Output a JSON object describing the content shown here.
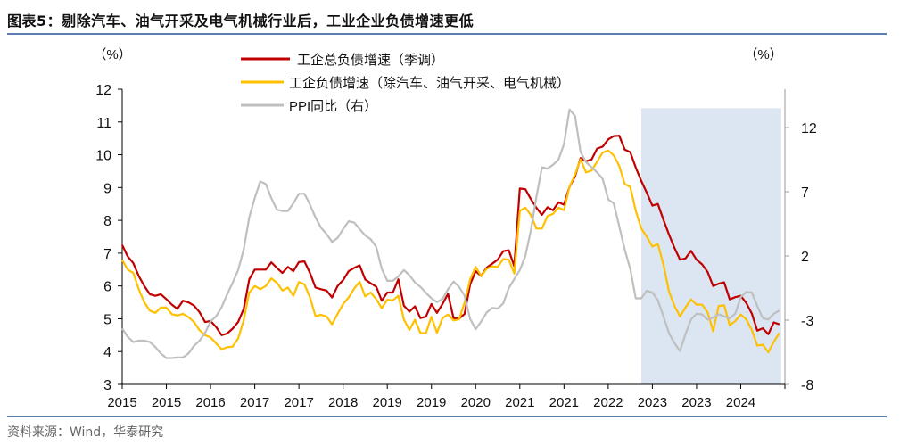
{
  "title": "图表5：剔除汽车、油气开采及电气机械行业后，工业企业负债增速更低",
  "source": "资料来源：Wind，华泰研究",
  "colors": {
    "rule": "#5b7db4",
    "highlight": "#dce6f2"
  },
  "chart_data": {
    "type": "line",
    "left_unit": "（%）",
    "right_unit": "（%）",
    "left_ylim": [
      3,
      12
    ],
    "left_ticks": [
      "3",
      "4",
      "5",
      "6",
      "7",
      "8",
      "9",
      "10",
      "11",
      "12"
    ],
    "right_ylim": [
      -8,
      15
    ],
    "right_ticks": [
      "-8",
      "-3",
      "2",
      "7",
      "12"
    ],
    "x_tick_labels": [
      "2015",
      "2015",
      "2016",
      "2017",
      "2017",
      "2018",
      "2019",
      "2019",
      "2020",
      "2021",
      "2021",
      "2022",
      "2023",
      "2023",
      "2024"
    ],
    "grid": false,
    "legend": "top-center",
    "highlight": {
      "from": "2022-11",
      "to": "2024-12",
      "color": "#dce6f2"
    },
    "x": [
      "2015-01",
      "2015-02",
      "2015-03",
      "2015-04",
      "2015-05",
      "2015-06",
      "2015-07",
      "2015-08",
      "2015-09",
      "2015-10",
      "2015-11",
      "2015-12",
      "2016-01",
      "2016-02",
      "2016-03",
      "2016-04",
      "2016-05",
      "2016-06",
      "2016-07",
      "2016-08",
      "2016-09",
      "2016-10",
      "2016-11",
      "2016-12",
      "2017-01",
      "2017-02",
      "2017-03",
      "2017-04",
      "2017-05",
      "2017-06",
      "2017-07",
      "2017-08",
      "2017-09",
      "2017-10",
      "2017-11",
      "2017-12",
      "2018-01",
      "2018-02",
      "2018-03",
      "2018-04",
      "2018-05",
      "2018-06",
      "2018-07",
      "2018-08",
      "2018-09",
      "2018-10",
      "2018-11",
      "2018-12",
      "2019-01",
      "2019-02",
      "2019-03",
      "2019-04",
      "2019-05",
      "2019-06",
      "2019-07",
      "2019-08",
      "2019-09",
      "2019-10",
      "2019-11",
      "2019-12",
      "2020-01",
      "2020-02",
      "2020-03",
      "2020-04",
      "2020-05",
      "2020-06",
      "2020-07",
      "2020-08",
      "2020-09",
      "2020-10",
      "2020-11",
      "2020-12",
      "2021-01",
      "2021-02",
      "2021-03",
      "2021-04",
      "2021-05",
      "2021-06",
      "2021-07",
      "2021-08",
      "2021-09",
      "2021-10",
      "2021-11",
      "2021-12",
      "2022-01",
      "2022-02",
      "2022-03",
      "2022-04",
      "2022-05",
      "2022-06",
      "2022-07",
      "2022-08",
      "2022-09",
      "2022-10",
      "2022-11",
      "2022-12",
      "2023-01",
      "2023-02",
      "2023-03",
      "2023-04",
      "2023-05",
      "2023-06",
      "2023-07",
      "2023-08",
      "2023-09",
      "2023-10",
      "2023-11",
      "2023-12",
      "2024-01",
      "2024-02",
      "2024-03",
      "2024-04",
      "2024-05",
      "2024-06",
      "2024-07",
      "2024-08",
      "2024-09",
      "2024-10",
      "2024-11",
      "2024-12"
    ],
    "series": [
      {
        "name": "工企总负债增速（季调）",
        "axis": "left",
        "color": "#c00000",
        "values": [
          7.25,
          6.9,
          6.7,
          6.3,
          6.0,
          5.75,
          5.7,
          5.75,
          5.6,
          5.43,
          5.3,
          5.55,
          5.5,
          5.4,
          5.2,
          4.9,
          4.93,
          4.75,
          4.5,
          4.55,
          4.7,
          4.9,
          5.3,
          6.2,
          6.5,
          6.5,
          6.5,
          6.72,
          6.55,
          6.4,
          6.58,
          6.45,
          6.73,
          6.75,
          6.4,
          5.95,
          5.9,
          5.86,
          5.65,
          6.0,
          6.18,
          6.45,
          6.55,
          6.63,
          6.2,
          6.08,
          5.98,
          5.55,
          5.8,
          5.8,
          6.2,
          5.4,
          5.22,
          5.38,
          5.02,
          5.06,
          5.45,
          5.18,
          5.45,
          5.76,
          5.02,
          5.0,
          5.15,
          6.05,
          6.45,
          6.3,
          6.56,
          6.68,
          6.8,
          7.06,
          7.09,
          6.6,
          8.97,
          8.95,
          8.65,
          8.38,
          8.17,
          8.4,
          8.31,
          8.55,
          8.48,
          9.02,
          9.34,
          9.9,
          9.8,
          9.86,
          10.19,
          10.25,
          10.47,
          10.57,
          10.58,
          10.16,
          10.08,
          9.61,
          9.2,
          8.84,
          8.45,
          8.5,
          8.02,
          7.57,
          7.16,
          6.8,
          6.84,
          7.07,
          6.8,
          6.66,
          6.43,
          6.0,
          6.07,
          6.11,
          5.59,
          5.66,
          5.7,
          5.48,
          5.16,
          4.64,
          4.71,
          4.53,
          4.89,
          4.83
        ]
      },
      {
        "name": "工企负债增速（除汽车、油气开采、电气机械）",
        "axis": "left",
        "color": "#ffc000",
        "values": [
          6.79,
          6.5,
          6.4,
          5.9,
          5.5,
          5.25,
          5.18,
          5.34,
          5.34,
          5.14,
          5.1,
          5.15,
          5.05,
          4.9,
          4.65,
          4.5,
          4.43,
          4.25,
          4.07,
          4.13,
          4.15,
          4.4,
          4.95,
          5.8,
          6.0,
          5.9,
          6.0,
          6.23,
          6.1,
          5.86,
          5.95,
          5.7,
          6.12,
          6.05,
          5.65,
          5.08,
          5.12,
          5.07,
          4.83,
          5.15,
          5.45,
          5.65,
          5.92,
          6.13,
          5.68,
          5.8,
          5.6,
          5.32,
          5.58,
          5.56,
          5.7,
          4.98,
          4.66,
          4.97,
          4.57,
          4.56,
          5.06,
          4.57,
          5.02,
          5.13,
          4.95,
          4.98,
          5.5,
          6.2,
          6.58,
          6.3,
          6.52,
          6.6,
          6.58,
          6.82,
          6.8,
          6.38,
          8.29,
          8.39,
          8.16,
          7.75,
          7.75,
          8.13,
          8.2,
          8.39,
          8.31,
          9.02,
          9.4,
          9.86,
          9.46,
          9.52,
          9.79,
          10.07,
          10.13,
          9.98,
          9.66,
          9.11,
          9.02,
          8.29,
          7.75,
          7.5,
          7.2,
          7.28,
          6.66,
          5.84,
          5.39,
          5.07,
          5.34,
          5.59,
          5.43,
          5.43,
          5.2,
          4.62,
          5.39,
          5.41,
          4.8,
          4.93,
          5.13,
          4.98,
          4.66,
          4.18,
          4.21,
          3.98,
          4.3,
          4.57
        ]
      },
      {
        "name": "PPI同比（右）",
        "axis": "right",
        "color": "#bfbfbf",
        "values": [
          -3.65,
          -4.3,
          -4.7,
          -4.6,
          -4.6,
          -4.7,
          -5.1,
          -5.6,
          -5.95,
          -5.95,
          -5.9,
          -5.9,
          -5.6,
          -5.0,
          -4.6,
          -4.0,
          -3.1,
          -2.7,
          -2.0,
          -1.0,
          -0.1,
          0.9,
          2.5,
          5.0,
          6.5,
          7.8,
          7.6,
          6.5,
          5.6,
          5.5,
          5.5,
          6.1,
          6.84,
          6.84,
          6.0,
          5.0,
          4.2,
          3.7,
          3.1,
          3.4,
          4.1,
          4.7,
          4.6,
          4.1,
          3.6,
          3.3,
          2.7,
          1.0,
          0.06,
          0.06,
          0.4,
          0.9,
          0.5,
          -0.06,
          -0.4,
          -0.87,
          -1.3,
          -1.6,
          -1.35,
          -0.6,
          0.0,
          -0.4,
          -1.1,
          -2.9,
          -3.7,
          -3.1,
          -2.4,
          -2.05,
          -2.1,
          -1.7,
          -0.5,
          0.2,
          0.9,
          2.0,
          4.0,
          6.6,
          8.9,
          8.8,
          9.1,
          9.5,
          10.7,
          13.4,
          12.9,
          10.1,
          9.3,
          8.9,
          8.5,
          8.0,
          6.4,
          6.1,
          4.3,
          2.5,
          1.0,
          -1.3,
          -1.3,
          -0.7,
          -0.85,
          -1.45,
          -2.7,
          -4.0,
          -4.8,
          -5.4,
          -4.1,
          -2.95,
          -2.5,
          -2.55,
          -2.95,
          -2.8,
          -2.55,
          -2.7,
          -2.85,
          -2.5,
          -1.2,
          -0.8,
          -0.85,
          -1.9,
          -2.85,
          -2.95,
          -2.5,
          -2.25
        ]
      }
    ]
  }
}
